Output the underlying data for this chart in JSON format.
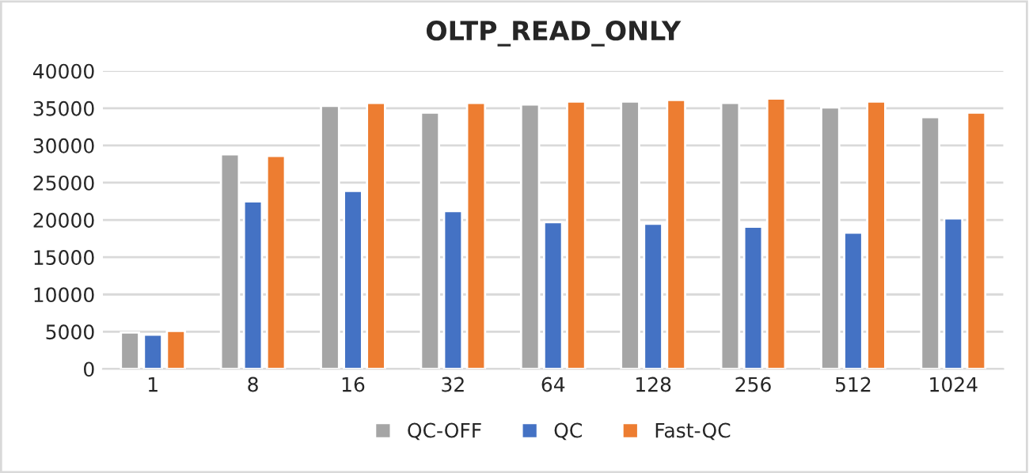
{
  "chart_data": {
    "type": "bar",
    "title": "OLTP_READ_ONLY",
    "categories": [
      "1",
      "8",
      "16",
      "32",
      "64",
      "128",
      "256",
      "512",
      "1024"
    ],
    "series": [
      {
        "name": "QC-OFF",
        "color": "#a5a5a5",
        "values": [
          4900,
          28800,
          35300,
          34400,
          35500,
          35900,
          35700,
          35100,
          33800
        ]
      },
      {
        "name": "QC",
        "color": "#4472c4",
        "values": [
          4600,
          22500,
          23900,
          21200,
          19700,
          19500,
          19100,
          18300,
          20200
        ]
      },
      {
        "name": "Fast-QC",
        "color": "#ed7d31",
        "values": [
          5100,
          28600,
          35700,
          35700,
          35900,
          36100,
          36300,
          35900,
          34400
        ]
      }
    ],
    "ylim": [
      0,
      40000
    ],
    "yticks": [
      0,
      5000,
      10000,
      15000,
      20000,
      25000,
      30000,
      35000,
      40000
    ],
    "grid": "y",
    "legend": "bottom"
  }
}
